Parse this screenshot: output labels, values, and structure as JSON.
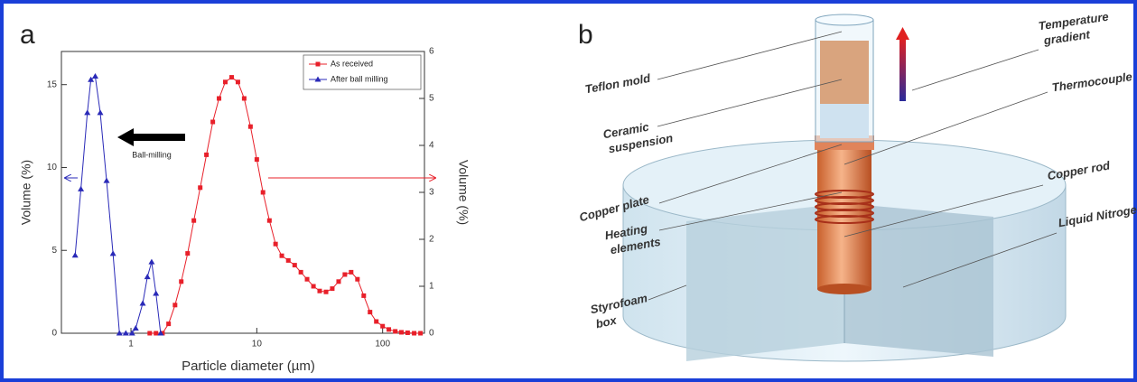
{
  "chart_data": {
    "type": "line",
    "panel_label": "a",
    "xlabel": "Particle diameter (µm)",
    "ylabel": "Volume (%)",
    "y2label": "Volume (%)",
    "log_x": true,
    "xlim": [
      0.28,
      215
    ],
    "xticks": [
      1,
      10,
      100
    ],
    "ylim": [
      0,
      17
    ],
    "yticks": [
      0,
      5,
      10,
      15
    ],
    "y2lim": [
      0,
      6
    ],
    "y2ticks": [
      0,
      1,
      2,
      3,
      4,
      5,
      6
    ],
    "legend": "upper right",
    "annotations": [
      "Ball-milling"
    ],
    "series": [
      {
        "name": "As received",
        "color": "#e8202a",
        "axis": "y2",
        "marker": "square",
        "x": [
          1.41,
          1.58,
          1.78,
          1.99,
          2.24,
          2.51,
          2.82,
          3.16,
          3.55,
          3.98,
          4.47,
          5.01,
          5.62,
          6.31,
          7.08,
          7.94,
          8.91,
          10.0,
          11.2,
          12.6,
          14.1,
          15.8,
          17.8,
          20.0,
          22.4,
          25.1,
          28.2,
          31.6,
          35.5,
          39.8,
          44.7,
          50.1,
          56.2,
          63.1,
          70.8,
          79.4,
          89.1,
          100,
          112,
          126,
          141,
          158,
          178,
          200
        ],
        "values": [
          0,
          0,
          0,
          0.2,
          0.6,
          1.1,
          1.7,
          2.4,
          3.1,
          3.8,
          4.5,
          5.0,
          5.35,
          5.45,
          5.35,
          5.0,
          4.4,
          3.7,
          3.0,
          2.4,
          1.9,
          1.65,
          1.55,
          1.45,
          1.3,
          1.15,
          1.0,
          0.9,
          0.88,
          0.95,
          1.1,
          1.25,
          1.3,
          1.15,
          0.8,
          0.45,
          0.25,
          0.15,
          0.08,
          0.04,
          0.02,
          0.01,
          0,
          0
        ]
      },
      {
        "name": "After ball milling",
        "color": "#2a2ab8",
        "axis": "y",
        "marker": "triangle",
        "x": [
          0.36,
          0.4,
          0.45,
          0.48,
          0.52,
          0.57,
          0.64,
          0.72,
          0.81,
          0.91,
          1.02,
          1.09,
          1.24,
          1.35,
          1.46,
          1.58,
          1.72
        ],
        "values": [
          4.7,
          8.7,
          13.3,
          15.3,
          15.5,
          13.3,
          9.2,
          4.8,
          0,
          0,
          0,
          0.3,
          1.8,
          3.4,
          4.3,
          2.4,
          0
        ]
      }
    ]
  },
  "diagram": {
    "panel_label": "b",
    "labels": [
      {
        "lines": [
          "Teflon mold"
        ]
      },
      {
        "lines": [
          "Ceramic",
          "suspension"
        ]
      },
      {
        "lines": [
          "Copper plate"
        ]
      },
      {
        "lines": [
          "Heating",
          "elements"
        ]
      },
      {
        "lines": [
          "Styrofoam",
          "box"
        ]
      },
      {
        "lines": [
          "Temperature",
          "gradient"
        ]
      },
      {
        "lines": [
          "Thermocouple"
        ]
      },
      {
        "lines": [
          "Copper rod"
        ]
      },
      {
        "lines": [
          "Liquid Nitrogen"
        ]
      }
    ]
  }
}
